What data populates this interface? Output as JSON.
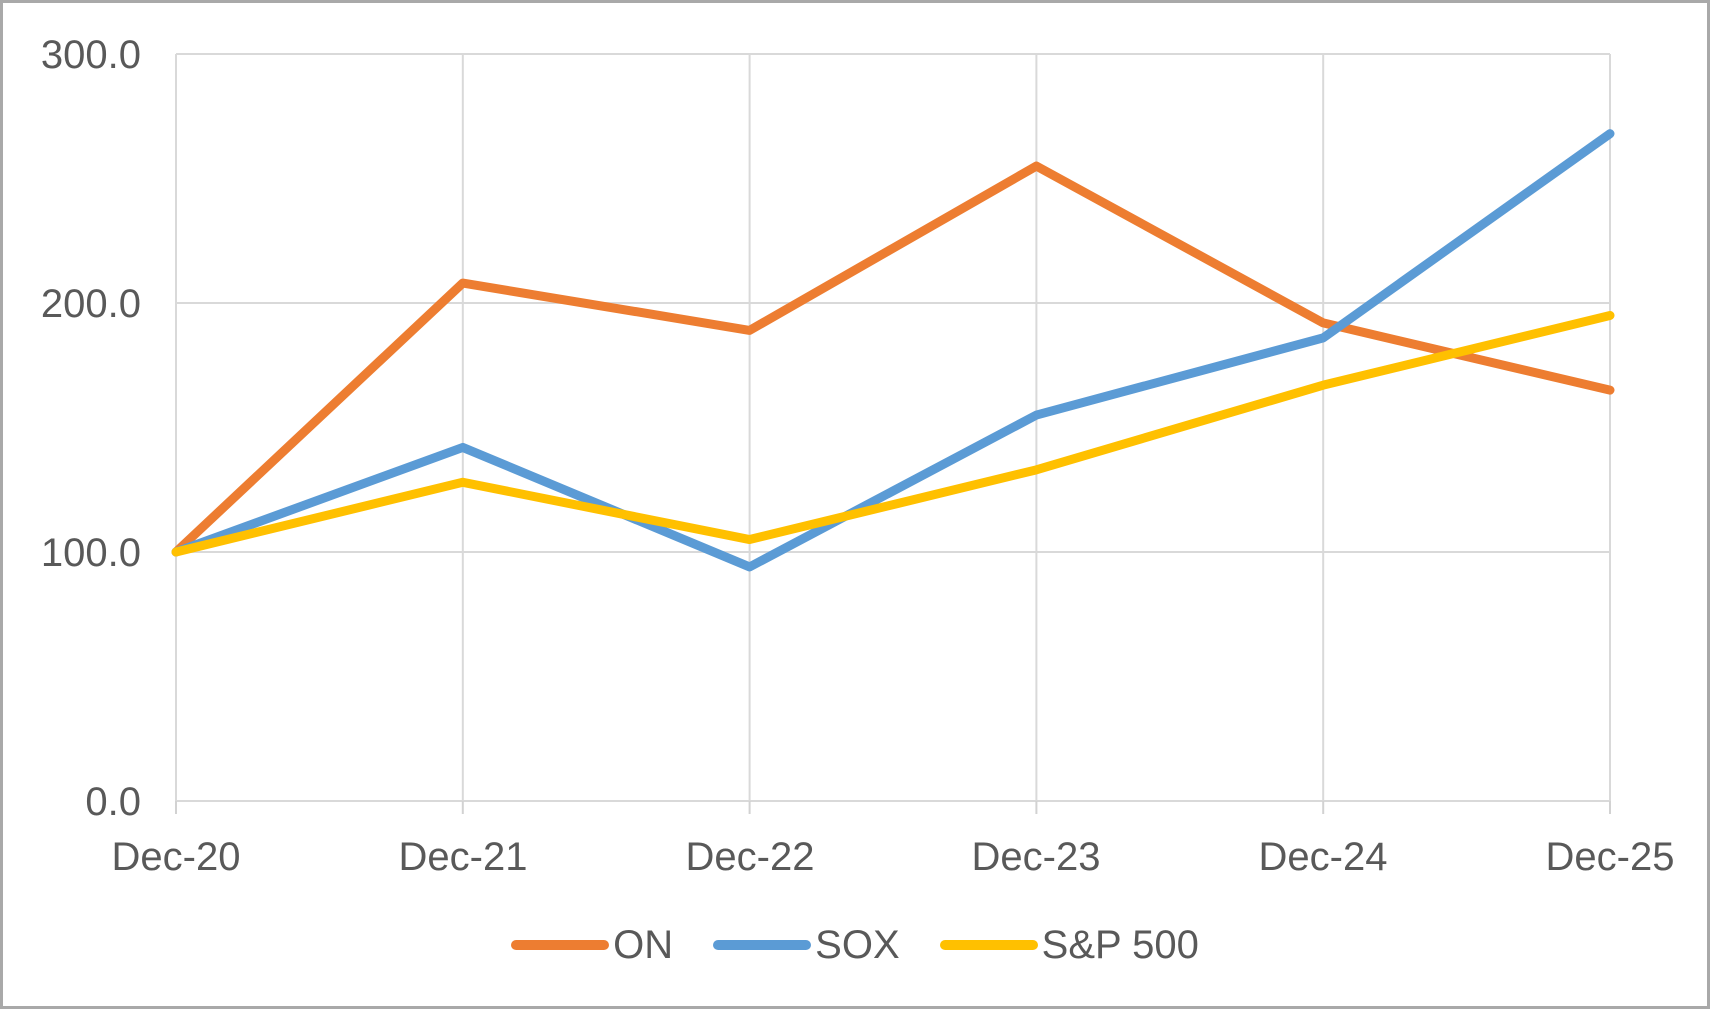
{
  "chart_data": {
    "type": "line",
    "title": "",
    "xlabel": "",
    "ylabel": "",
    "categories": [
      "Dec-20",
      "Dec-21",
      "Dec-22",
      "Dec-23",
      "Dec-24",
      "Dec-25"
    ],
    "series": [
      {
        "name": "ON",
        "color": "#ED7D31",
        "values": [
          100.0,
          208.0,
          189.0,
          255.0,
          192.0,
          165.0
        ]
      },
      {
        "name": "SOX",
        "color": "#5B9BD5",
        "values": [
          100.0,
          142.0,
          94.0,
          155.0,
          186.0,
          268.0
        ]
      },
      {
        "name": "S&P 500",
        "color": "#FFC000",
        "values": [
          100.0,
          128.0,
          105.0,
          133.0,
          167.0,
          195.0
        ]
      }
    ],
    "ylim": [
      0,
      300
    ],
    "yticks": [
      0,
      100,
      200,
      300
    ],
    "yticklabels": [
      "0.0",
      "100.0",
      "200.0",
      "300.0"
    ],
    "grid": true,
    "legend_position": "bottom",
    "line_width": 9,
    "colors": {
      "text": "#595959",
      "gridline": "#D9D9D9",
      "axis": "#D2D2D2",
      "background": "#FFFFFF",
      "frame_border": "#A9A9A9"
    }
  }
}
